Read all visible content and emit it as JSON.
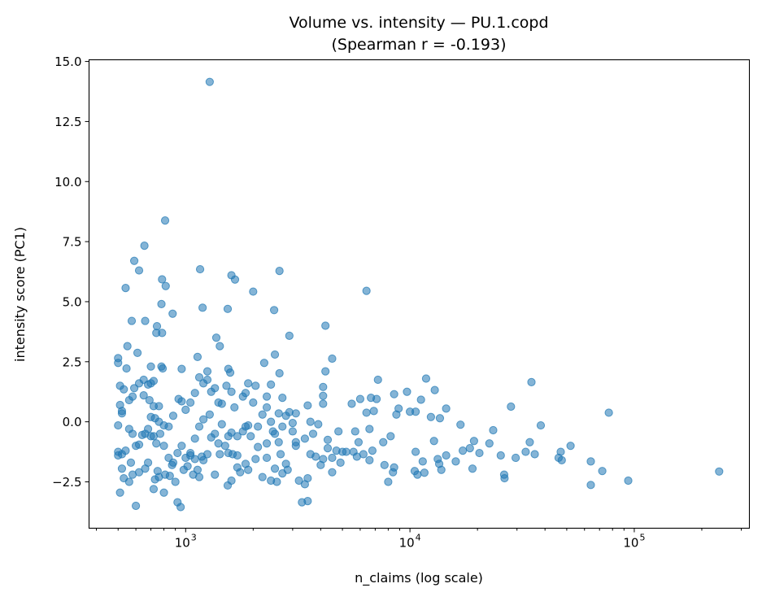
{
  "chart_data": {
    "type": "scatter",
    "title": "Volume vs. intensity — PU.1.copd",
    "subtitle": "(Spearman r = -0.193)",
    "xlabel": "n_claims (log scale)",
    "ylabel": "intensity score (PC1)",
    "xscale": "log",
    "xlim": [
      371,
      326000
    ],
    "ylim": [
      -4.43,
      15.07
    ],
    "grid": false,
    "xticks": [
      1000,
      10000,
      100000
    ],
    "xtick_labels": [
      {
        "base": "10",
        "exp": "3"
      },
      {
        "base": "10",
        "exp": "4"
      },
      {
        "base": "10",
        "exp": "5"
      }
    ],
    "yticks": [
      -2.5,
      0,
      2.5,
      5,
      7.5,
      10,
      12.5,
      15
    ],
    "ytick_labels": [
      "−2.5",
      "0.0",
      "2.5",
      "5.0",
      "7.5",
      "10.0",
      "12.5",
      "15.0"
    ],
    "marker_color": "#1f77b4",
    "marker_alpha": 0.55,
    "points": [
      [
        1280,
        14.15
      ],
      [
        810,
        8.38
      ],
      [
        655,
        7.33
      ],
      [
        590,
        6.7
      ],
      [
        620,
        6.3
      ],
      [
        540,
        5.57
      ],
      [
        1160,
        6.35
      ],
      [
        1600,
        6.1
      ],
      [
        1660,
        5.92
      ],
      [
        2620,
        6.28
      ],
      [
        2000,
        5.42
      ],
      [
        6400,
        5.45
      ],
      [
        785,
        5.93
      ],
      [
        815,
        5.65
      ],
      [
        780,
        4.9
      ],
      [
        660,
        4.2
      ],
      [
        575,
        4.2
      ],
      [
        875,
        4.5
      ],
      [
        1190,
        4.75
      ],
      [
        1540,
        4.7
      ],
      [
        2480,
        4.65
      ],
      [
        4200,
        4.0
      ],
      [
        745,
        3.98
      ],
      [
        740,
        3.7
      ],
      [
        785,
        3.7
      ],
      [
        550,
        3.15
      ],
      [
        1370,
        3.5
      ],
      [
        1420,
        3.15
      ],
      [
        2900,
        3.58
      ],
      [
        4500,
        2.63
      ],
      [
        500,
        2.65
      ],
      [
        500,
        2.45
      ],
      [
        610,
        2.87
      ],
      [
        1130,
        2.7
      ],
      [
        780,
        2.3
      ],
      [
        790,
        2.22
      ],
      [
        700,
        2.3
      ],
      [
        545,
        2.22
      ],
      [
        960,
        2.2
      ],
      [
        1250,
        2.1
      ],
      [
        1550,
        2.2
      ],
      [
        1580,
        2.05
      ],
      [
        2240,
        2.45
      ],
      [
        2500,
        2.8
      ],
      [
        2620,
        2.02
      ],
      [
        4200,
        2.1
      ],
      [
        4100,
        1.45
      ],
      [
        4100,
        1.08
      ],
      [
        7200,
        1.75
      ],
      [
        11800,
        1.8
      ],
      [
        34800,
        1.65
      ],
      [
        12900,
        1.32
      ],
      [
        11200,
        0.92
      ],
      [
        9700,
        1.25
      ],
      [
        8500,
        1.15
      ],
      [
        14500,
        0.55
      ],
      [
        10600,
        0.42
      ],
      [
        8900,
        0.55
      ],
      [
        6700,
        1.0
      ],
      [
        7100,
        0.95
      ],
      [
        6000,
        0.95
      ],
      [
        5500,
        0.75
      ],
      [
        16800,
        -0.12
      ],
      [
        23500,
        -0.35
      ],
      [
        28200,
        0.63
      ],
      [
        38300,
        -0.15
      ],
      [
        77000,
        0.38
      ],
      [
        13600,
        0.15
      ],
      [
        12400,
        0.2
      ],
      [
        10000,
        0.42
      ],
      [
        8700,
        0.3
      ],
      [
        6900,
        0.45
      ],
      [
        6400,
        0.38
      ],
      [
        6600,
        -0.3
      ],
      [
        5700,
        -0.4
      ],
      [
        5900,
        -0.85
      ],
      [
        4800,
        -0.4
      ],
      [
        17200,
        -1.2
      ],
      [
        18500,
        -1.1
      ],
      [
        19300,
        -0.8
      ],
      [
        20400,
        -1.3
      ],
      [
        22600,
        -0.9
      ],
      [
        25400,
        -1.4
      ],
      [
        29600,
        -1.5
      ],
      [
        32800,
        -1.25
      ],
      [
        34200,
        -0.85
      ],
      [
        36000,
        -1.35
      ],
      [
        47000,
        -1.25
      ],
      [
        46000,
        -1.5
      ],
      [
        47500,
        -1.6
      ],
      [
        52000,
        -1.0
      ],
      [
        64000,
        -1.65
      ],
      [
        64000,
        -2.63
      ],
      [
        72000,
        -2.05
      ],
      [
        94000,
        -2.45
      ],
      [
        239000,
        -2.07
      ],
      [
        26300,
        -2.2
      ],
      [
        26400,
        -2.35
      ],
      [
        19000,
        -1.95
      ],
      [
        16000,
        -1.65
      ],
      [
        14500,
        -1.4
      ],
      [
        13300,
        -1.55
      ],
      [
        13500,
        -1.75
      ],
      [
        13800,
        -2.0
      ],
      [
        12800,
        -0.8
      ],
      [
        11400,
        -1.65
      ],
      [
        10600,
        -1.25
      ],
      [
        10800,
        -2.2
      ],
      [
        10500,
        -2.05
      ],
      [
        11600,
        -2.12
      ],
      [
        8500,
        -1.9
      ],
      [
        8400,
        -2.1
      ],
      [
        7700,
        -1.8
      ],
      [
        8000,
        -2.5
      ],
      [
        7600,
        -0.85
      ],
      [
        8200,
        -0.6
      ],
      [
        6200,
        -1.35
      ],
      [
        6800,
        -1.2
      ],
      [
        6600,
        -1.6
      ],
      [
        5800,
        -1.45
      ],
      [
        5600,
        -1.25
      ],
      [
        5200,
        -1.25
      ],
      [
        5000,
        -1.25
      ],
      [
        4900,
        -1.7
      ],
      [
        4500,
        -1.5
      ],
      [
        4700,
        -1.2
      ],
      [
        4300,
        -1.1
      ],
      [
        4300,
        -0.75
      ],
      [
        4500,
        -2.1
      ],
      [
        4000,
        -1.8
      ],
      [
        4100,
        -1.55
      ],
      [
        3600,
        -1.35
      ],
      [
        3500,
        -2.35
      ],
      [
        3300,
        -3.35
      ],
      [
        3500,
        -3.3
      ],
      [
        3400,
        -2.6
      ],
      [
        3100,
        -0.85
      ],
      [
        3100,
        -1.0
      ],
      [
        3400,
        -0.7
      ],
      [
        3600,
        0.0
      ],
      [
        3500,
        0.68
      ],
      [
        4100,
        0.75
      ],
      [
        500,
        -0.15
      ],
      [
        510,
        0.7
      ],
      [
        520,
        0.45
      ],
      [
        520,
        0.35
      ],
      [
        510,
        1.5
      ],
      [
        530,
        1.35
      ],
      [
        560,
        0.9
      ],
      [
        580,
        1.05
      ],
      [
        590,
        1.4
      ],
      [
        620,
        1.6
      ],
      [
        650,
        1.75
      ],
      [
        680,
        1.55
      ],
      [
        700,
        1.6
      ],
      [
        720,
        1.7
      ],
      [
        650,
        1.1
      ],
      [
        690,
        0.9
      ],
      [
        720,
        0.65
      ],
      [
        760,
        0.65
      ],
      [
        700,
        0.2
      ],
      [
        730,
        0.15
      ],
      [
        760,
        0.0
      ],
      [
        800,
        -0.15
      ],
      [
        840,
        -0.2
      ],
      [
        880,
        0.25
      ],
      [
        930,
        0.95
      ],
      [
        960,
        0.85
      ],
      [
        1000,
        0.5
      ],
      [
        1050,
        0.8
      ],
      [
        1100,
        1.2
      ],
      [
        1150,
        1.85
      ],
      [
        1200,
        1.6
      ],
      [
        1250,
        1.75
      ],
      [
        1300,
        1.25
      ],
      [
        1350,
        1.4
      ],
      [
        1400,
        0.8
      ],
      [
        1450,
        0.75
      ],
      [
        1520,
        1.5
      ],
      [
        1600,
        1.25
      ],
      [
        1650,
        0.6
      ],
      [
        1800,
        1.05
      ],
      [
        1850,
        1.2
      ],
      [
        1900,
        1.6
      ],
      [
        2050,
        1.5
      ],
      [
        2300,
        1.05
      ],
      [
        2400,
        1.55
      ],
      [
        2700,
        1.0
      ],
      [
        2900,
        0.4
      ],
      [
        3100,
        0.35
      ],
      [
        2300,
        0.6
      ],
      [
        2200,
        0.3
      ],
      [
        2100,
        -0.2
      ],
      [
        2000,
        0.8
      ],
      [
        1900,
        -0.15
      ],
      [
        1800,
        -0.4
      ],
      [
        1700,
        -0.6
      ],
      [
        1600,
        -0.45
      ],
      [
        1550,
        -0.6
      ],
      [
        1450,
        -0.1
      ],
      [
        1350,
        -0.5
      ],
      [
        1280,
        0.3
      ],
      [
        1200,
        0.1
      ],
      [
        1150,
        -0.2
      ],
      [
        1100,
        -0.7
      ],
      [
        1050,
        -1.3
      ],
      [
        1000,
        -1.5
      ],
      [
        960,
        -1.0
      ],
      [
        920,
        -1.3
      ],
      [
        880,
        -1.7
      ],
      [
        840,
        -1.5
      ],
      [
        800,
        -1.0
      ],
      [
        770,
        -0.5
      ],
      [
        740,
        -0.9
      ],
      [
        720,
        -0.6
      ],
      [
        700,
        -0.6
      ],
      [
        680,
        -0.3
      ],
      [
        660,
        -0.5
      ],
      [
        640,
        -0.55
      ],
      [
        620,
        -0.95
      ],
      [
        600,
        -1.0
      ],
      [
        580,
        -0.5
      ],
      [
        560,
        -0.3
      ],
      [
        540,
        -1.2
      ],
      [
        520,
        -1.35
      ],
      [
        500,
        -1.4
      ],
      [
        500,
        -1.25
      ],
      [
        520,
        -1.95
      ],
      [
        530,
        -2.35
      ],
      [
        510,
        -2.95
      ],
      [
        560,
        -2.5
      ],
      [
        580,
        -2.2
      ],
      [
        570,
        -1.7
      ],
      [
        600,
        -3.5
      ],
      [
        620,
        -2.1
      ],
      [
        660,
        -1.95
      ],
      [
        680,
        -1.7
      ],
      [
        720,
        -2.8
      ],
      [
        730,
        -2.4
      ],
      [
        750,
        -2.05
      ],
      [
        760,
        -2.3
      ],
      [
        800,
        -2.95
      ],
      [
        810,
        -2.2
      ],
      [
        850,
        -2.25
      ],
      [
        870,
        -1.8
      ],
      [
        900,
        -2.5
      ],
      [
        920,
        -3.35
      ],
      [
        950,
        -3.55
      ],
      [
        980,
        -2.0
      ],
      [
        1020,
        -1.85
      ],
      [
        1080,
        -2.2
      ],
      [
        1130,
        -2.0
      ],
      [
        1150,
        -2.3
      ],
      [
        1200,
        -1.6
      ],
      [
        1250,
        -1.35
      ],
      [
        1350,
        -2.2
      ],
      [
        1420,
        -1.35
      ],
      [
        1500,
        -1.0
      ],
      [
        1540,
        -2.65
      ],
      [
        1600,
        -2.45
      ],
      [
        1620,
        -1.35
      ],
      [
        1700,
        -1.9
      ],
      [
        1750,
        -2.1
      ],
      [
        1850,
        -1.75
      ],
      [
        1900,
        -2.0
      ],
      [
        2050,
        -1.55
      ],
      [
        2200,
        -2.3
      ],
      [
        2300,
        -1.5
      ],
      [
        2400,
        -2.45
      ],
      [
        2500,
        -1.95
      ],
      [
        2550,
        -2.5
      ],
      [
        2700,
        -2.15
      ],
      [
        2800,
        -1.75
      ],
      [
        2850,
        -2.0
      ],
      [
        2650,
        -1.35
      ],
      [
        2600,
        -0.85
      ],
      [
        2450,
        -0.4
      ],
      [
        2300,
        -0.9
      ],
      [
        2100,
        -1.05
      ],
      [
        1950,
        -0.6
      ],
      [
        1850,
        -0.2
      ],
      [
        1700,
        -1.4
      ],
      [
        1550,
        -1.3
      ],
      [
        1400,
        -0.9
      ],
      [
        1300,
        -0.65
      ],
      [
        1180,
        -1.45
      ],
      [
        1100,
        -1.55
      ],
      [
        1050,
        -1.4
      ],
      [
        3200,
        -2.45
      ],
      [
        3800,
        -1.45
      ],
      [
        3700,
        -0.5
      ],
      [
        3900,
        -0.1
      ],
      [
        3000,
        -0.05
      ],
      [
        3000,
        -0.4
      ],
      [
        2800,
        0.25
      ],
      [
        2700,
        -0.2
      ],
      [
        2600,
        0.35
      ],
      [
        2500,
        -0.5
      ],
      [
        2400,
        0.0
      ]
    ]
  }
}
